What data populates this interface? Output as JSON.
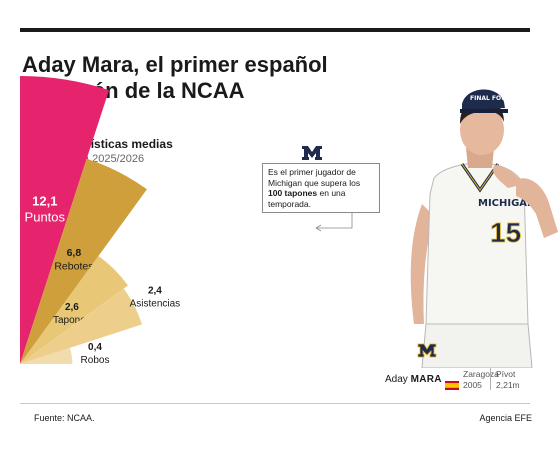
{
  "headline": "Aday Mara, el primer español campeón de la NCAA",
  "chart_data": {
    "type": "pie",
    "title": "Sus estadísticas medias",
    "subtitle": "Temporada 2025/2026",
    "value_labels": [
      "12,1",
      "6,8",
      "2,6",
      "2,4",
      "0,4"
    ],
    "categories": [
      "Puntos",
      "Rebotes",
      "Tapones",
      "Asistencias",
      "Robos"
    ],
    "values": [
      12.1,
      6.8,
      2.6,
      2.4,
      0.4
    ],
    "colors": [
      "#e5246d",
      "#cf9f3b",
      "#e8c777",
      "#edcf8b",
      "#f1dcae"
    ]
  },
  "annotation": {
    "text_before": "Es el primer jugador de Michigan que supera los",
    "highlight": "100 tapones",
    "text_after": "en una temporada."
  },
  "player": {
    "first_name": "Aday",
    "last_name": "MARA",
    "city": "Zaragoza",
    "year": "2005",
    "position": "Pívot",
    "height": "2,21m",
    "jersey_team": "MICHIGAN",
    "jersey_number": "15",
    "cap_text": "FINAL FOUR"
  },
  "footer": {
    "source": "Fuente: NCAA.",
    "credit": "Agencia EFE"
  }
}
